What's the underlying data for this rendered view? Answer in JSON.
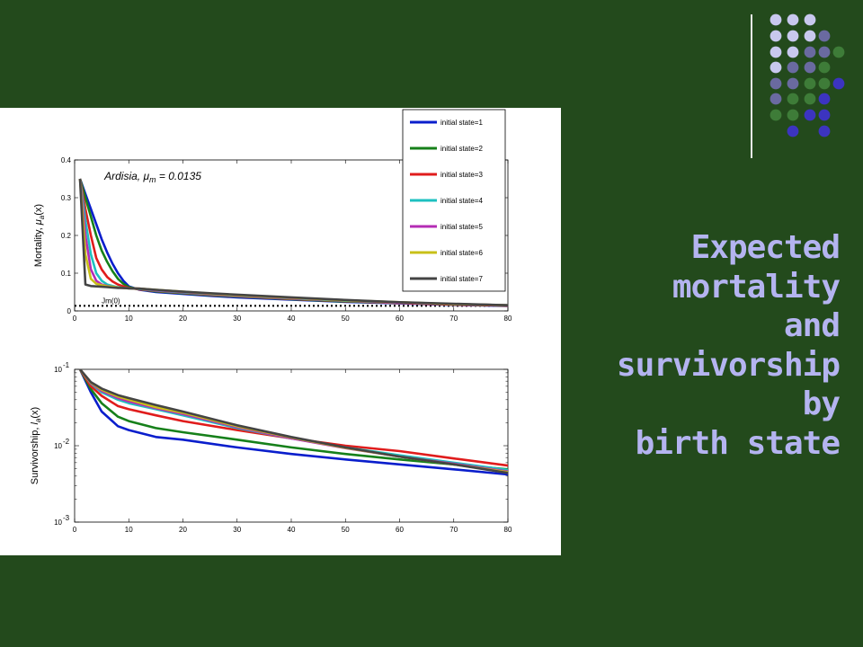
{
  "slide": {
    "title_lines": [
      "Expected",
      "mortality",
      "and",
      "survivorship",
      "by",
      "birth state"
    ],
    "background": "#234a1c",
    "title_color": "#b4b4f0",
    "dot_colors": [
      "#c8c8ee",
      "#6a6aa0",
      "#3e7c38",
      "#3c34c0"
    ],
    "dot_rows": [
      [
        0,
        0,
        0,
        -1,
        -1
      ],
      [
        0,
        0,
        0,
        1,
        -1
      ],
      [
        0,
        0,
        1,
        1,
        2
      ],
      [
        0,
        1,
        1,
        2,
        -1
      ],
      [
        1,
        1,
        2,
        2,
        3
      ],
      [
        1,
        2,
        2,
        3,
        -1
      ],
      [
        2,
        2,
        3,
        3,
        -1
      ],
      [
        -1,
        3,
        -1,
        3,
        -1
      ]
    ]
  },
  "chart_data": [
    {
      "type": "line",
      "ylabel_prefix": "Mortality, ",
      "ylabel_symbol": "μ",
      "ylabel_sub": "a",
      "ylabel_suffix": "(x)",
      "annotation": "Ardisia, μ",
      "annotation_sub": "m",
      "annotation_value": " = 0.0135",
      "note_label": "Jm(0)",
      "xlim": [
        0,
        80
      ],
      "ylim": [
        0,
        0.4
      ],
      "xticks": [
        "0",
        "10",
        "20",
        "30",
        "40",
        "50",
        "60",
        "70",
        "80"
      ],
      "yticks": [
        "0",
        "0.1",
        "0.2",
        "0.3",
        "0.4"
      ],
      "legend": [
        "initial state=1",
        "initial state=2",
        "initial state=3",
        "initial state=4",
        "initial state=5",
        "initial state=6",
        "initial state=7"
      ],
      "colors": [
        "#0a1ecc",
        "#16801a",
        "#e01c1c",
        "#1ec0c0",
        "#b42cb4",
        "#c8c018",
        "#444444"
      ],
      "x": [
        1,
        2,
        3,
        4,
        5,
        6,
        7,
        8,
        9,
        10,
        12,
        15,
        20,
        25,
        30,
        40,
        50,
        60,
        70,
        80
      ],
      "series": [
        {
          "values": [
            0.35,
            0.31,
            0.27,
            0.23,
            0.19,
            0.155,
            0.125,
            0.1,
            0.08,
            0.065,
            0.056,
            0.05,
            0.045,
            0.04,
            0.036,
            0.03,
            0.024,
            0.02,
            0.016,
            0.013
          ]
        },
        {
          "values": [
            0.35,
            0.3,
            0.25,
            0.2,
            0.16,
            0.13,
            0.105,
            0.085,
            0.072,
            0.063,
            0.057,
            0.052,
            0.047,
            0.042,
            0.038,
            0.031,
            0.025,
            0.021,
            0.017,
            0.014
          ]
        },
        {
          "values": [
            0.35,
            0.27,
            0.2,
            0.14,
            0.11,
            0.09,
            0.078,
            0.07,
            0.065,
            0.061,
            0.057,
            0.053,
            0.048,
            0.043,
            0.039,
            0.032,
            0.026,
            0.021,
            0.017,
            0.014
          ]
        },
        {
          "values": [
            0.35,
            0.24,
            0.15,
            0.1,
            0.08,
            0.07,
            0.066,
            0.063,
            0.061,
            0.06,
            0.058,
            0.054,
            0.049,
            0.044,
            0.04,
            0.033,
            0.027,
            0.022,
            0.018,
            0.015
          ]
        },
        {
          "values": [
            0.35,
            0.2,
            0.11,
            0.08,
            0.07,
            0.066,
            0.064,
            0.062,
            0.061,
            0.06,
            0.059,
            0.055,
            0.05,
            0.045,
            0.041,
            0.034,
            0.028,
            0.022,
            0.018,
            0.015
          ]
        },
        {
          "values": [
            0.35,
            0.15,
            0.085,
            0.072,
            0.068,
            0.065,
            0.064,
            0.062,
            0.061,
            0.06,
            0.059,
            0.056,
            0.051,
            0.046,
            0.042,
            0.035,
            0.028,
            0.023,
            0.018,
            0.015
          ]
        },
        {
          "values": [
            0.35,
            0.07,
            0.066,
            0.065,
            0.064,
            0.063,
            0.062,
            0.061,
            0.061,
            0.06,
            0.059,
            0.056,
            0.051,
            0.047,
            0.043,
            0.036,
            0.029,
            0.023,
            0.019,
            0.015
          ]
        }
      ],
      "reference_line": 0.0135
    },
    {
      "type": "line",
      "scale": "log",
      "ylabel_prefix": "Survivorship, ",
      "ylabel_symbol": "l",
      "ylabel_sub": "a",
      "ylabel_suffix": "(x)",
      "xlim": [
        0,
        80
      ],
      "ylim": [
        0.001,
        0.1
      ],
      "xticks": [
        "0",
        "10",
        "20",
        "30",
        "40",
        "50",
        "60",
        "70",
        "80"
      ],
      "yticks_base": [
        "10",
        "10",
        "10"
      ],
      "yticks_exp": [
        "-3",
        "-2",
        "-1"
      ],
      "yticks_values": [
        0.001,
        0.01,
        0.1
      ],
      "colors": [
        "#0a1ecc",
        "#16801a",
        "#e01c1c",
        "#1ec0c0",
        "#b42cb4",
        "#c8c018",
        "#444444"
      ],
      "x": [
        1,
        3,
        5,
        8,
        10,
        15,
        20,
        30,
        40,
        50,
        60,
        70,
        80
      ],
      "series": [
        {
          "values": [
            0.1,
            0.05,
            0.028,
            0.018,
            0.016,
            0.013,
            0.012,
            0.0095,
            0.0078,
            0.0066,
            0.0057,
            0.0049,
            0.0042
          ]
        },
        {
          "values": [
            0.1,
            0.055,
            0.036,
            0.024,
            0.021,
            0.017,
            0.015,
            0.012,
            0.0095,
            0.0078,
            0.0066,
            0.0057,
            0.0049
          ]
        },
        {
          "values": [
            0.1,
            0.06,
            0.045,
            0.033,
            0.03,
            0.025,
            0.021,
            0.016,
            0.0125,
            0.01,
            0.0085,
            0.0068,
            0.0055
          ]
        },
        {
          "values": [
            0.1,
            0.065,
            0.05,
            0.04,
            0.036,
            0.03,
            0.025,
            0.017,
            0.0125,
            0.0095,
            0.0075,
            0.006,
            0.0048
          ]
        },
        {
          "values": [
            0.1,
            0.066,
            0.052,
            0.042,
            0.038,
            0.031,
            0.026,
            0.0175,
            0.0125,
            0.0093,
            0.0072,
            0.0058,
            0.0046
          ]
        },
        {
          "values": [
            0.1,
            0.067,
            0.054,
            0.044,
            0.04,
            0.032,
            0.027,
            0.018,
            0.0128,
            0.0094,
            0.0072,
            0.0057,
            0.0045
          ]
        },
        {
          "values": [
            0.1,
            0.068,
            0.056,
            0.046,
            0.042,
            0.034,
            0.028,
            0.0185,
            0.013,
            0.0095,
            0.0072,
            0.0057,
            0.0044
          ]
        }
      ]
    }
  ]
}
